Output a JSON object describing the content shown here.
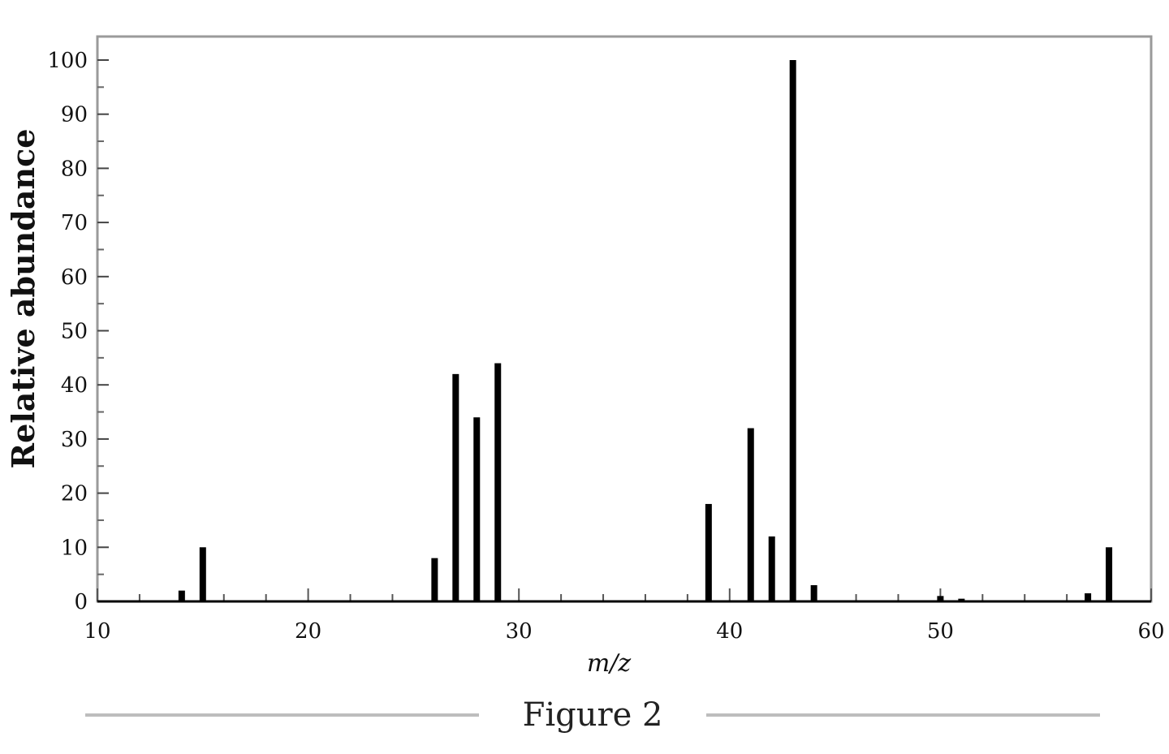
{
  "chart_data": {
    "type": "bar",
    "xlabel": "m/z",
    "ylabel": "Relative abundance",
    "caption": "Figure 2",
    "xlim": [
      10,
      60
    ],
    "ylim": [
      0,
      100
    ],
    "xticks": [
      10,
      20,
      30,
      40,
      50,
      60
    ],
    "yticks": [
      0,
      10,
      20,
      30,
      40,
      50,
      60,
      70,
      80,
      90,
      100
    ],
    "grid": false,
    "legend": "none",
    "bar_color": "#000000",
    "peaks": [
      {
        "x": 14,
        "y": 2
      },
      {
        "x": 15,
        "y": 10
      },
      {
        "x": 26,
        "y": 8
      },
      {
        "x": 27,
        "y": 42
      },
      {
        "x": 28,
        "y": 34
      },
      {
        "x": 29,
        "y": 44
      },
      {
        "x": 39,
        "y": 18
      },
      {
        "x": 41,
        "y": 32
      },
      {
        "x": 42,
        "y": 12
      },
      {
        "x": 43,
        "y": 100
      },
      {
        "x": 44,
        "y": 3
      },
      {
        "x": 50,
        "y": 1
      },
      {
        "x": 51,
        "y": 0.5
      },
      {
        "x": 57,
        "y": 1.5
      },
      {
        "x": 58,
        "y": 10
      }
    ]
  }
}
